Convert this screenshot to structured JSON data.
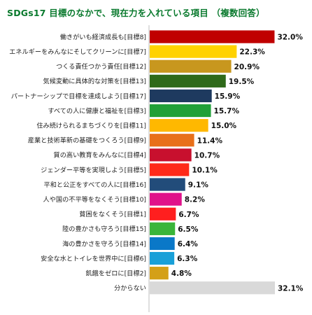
{
  "chart_data": {
    "type": "bar",
    "orientation": "horizontal",
    "title": "SDGs17 目標のなかで、現在力を入れている項目 （複数回答）",
    "value_suffix": "%",
    "xlim": [
      0,
      32.1
    ],
    "grid": false,
    "legend": "none",
    "categories": [
      "働きがいも経済成長も[目標8]",
      "エネルギーをみんなにそしてクリーンに[目標7]",
      "つくる責任つかう責任[目標12]",
      "気候変動に具体的な対策を[目標13]",
      "パートナーシップで目標を達成しよう[目標17]",
      "すべての人に健康と福祉を[目標3]",
      "住み続けられるまちづくりを[目標11]",
      "産業と技術革新の基礎をつくろう[目標9]",
      "質の高い教育をみんなに[目標4]",
      "ジェンダー平等を実現しよう[目標5]",
      "平和と公正をすべての人に[目標16]",
      "人や国の不平等をなくそう[目標10]",
      "貧困をなくそう[目標1]",
      "陸の豊かさも守ろう[目標15]",
      "海の豊かさを守ろう[目標14]",
      "安全な水とトイレを世界中に[目標6]",
      "飢餓をゼロに[目標2]",
      "分からない"
    ],
    "values": [
      32.0,
      22.3,
      20.9,
      19.5,
      15.9,
      15.7,
      15.0,
      11.4,
      10.7,
      10.1,
      9.1,
      8.2,
      6.7,
      6.5,
      6.4,
      6.3,
      4.8,
      32.1
    ],
    "value_labels": [
      "32.0%",
      "22.3%",
      "20.9%",
      "19.5%",
      "15.9%",
      "15.7%",
      "15.0%",
      "11.4%",
      "10.7%",
      "10.1%",
      "9.1%",
      "8.2%",
      "6.7%",
      "6.5%",
      "6.4%",
      "6.3%",
      "4.8%",
      "32.1%"
    ],
    "colors": [
      "#c00000",
      "#ffd200",
      "#c8971e",
      "#2f6a1a",
      "#1e3a5f",
      "#21a038",
      "#ffb800",
      "#e8701a",
      "#c8102e",
      "#ff2a1a",
      "#224c7a",
      "#e0128a",
      "#ff1f1f",
      "#3ab53a",
      "#0a78c8",
      "#19a0d8",
      "#d4a017",
      "#d9d9d9"
    ]
  }
}
